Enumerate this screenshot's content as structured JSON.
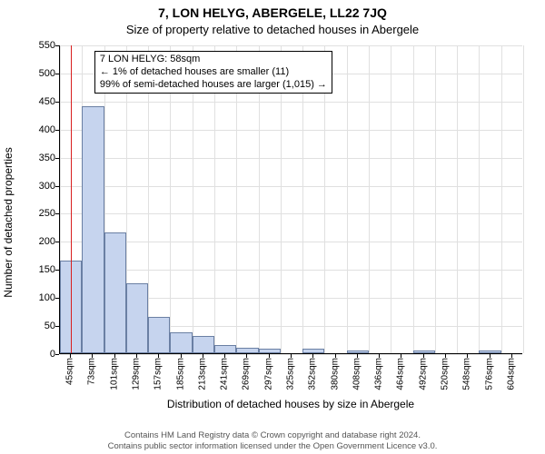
{
  "header": {
    "address": "7, LON HELYG, ABERGELE, LL22 7JQ",
    "subtitle": "Size of property relative to detached houses in Abergele"
  },
  "chart": {
    "type": "histogram",
    "ylabel": "Number of detached properties",
    "xlabel": "Distribution of detached houses by size in Abergele",
    "ylim": [
      0,
      550
    ],
    "ytick_step": 50,
    "yticks": [
      0,
      50,
      100,
      150,
      200,
      250,
      300,
      350,
      400,
      450,
      500,
      550
    ],
    "xticks": [
      "45sqm",
      "73sqm",
      "101sqm",
      "129sqm",
      "157sqm",
      "185sqm",
      "213sqm",
      "241sqm",
      "269sqm",
      "297sqm",
      "325sqm",
      "352sqm",
      "380sqm",
      "408sqm",
      "436sqm",
      "464sqm",
      "492sqm",
      "520sqm",
      "548sqm",
      "576sqm",
      "604sqm"
    ],
    "bar_color": "#c6d4ee",
    "bar_border_color": "#6a7fa3",
    "grid_color": "#e0e0e0",
    "background_color": "#ffffff",
    "marker_color": "#d91e1e",
    "marker_x_sqm": 58,
    "x_min_sqm": 45,
    "x_max_sqm": 604,
    "values": [
      165,
      440,
      215,
      125,
      65,
      38,
      30,
      15,
      10,
      8,
      0,
      8,
      0,
      5,
      0,
      0,
      5,
      0,
      0,
      5
    ],
    "title_fontsize": 14,
    "label_fontsize": 12,
    "tick_fontsize": 11,
    "xtick_fontsize": 10
  },
  "annotation": {
    "line1": "7 LON HELYG: 58sqm",
    "line2": "← 1% of detached houses are smaller (11)",
    "line3": "99% of semi-detached houses are larger (1,015) →"
  },
  "footer": {
    "line1": "Contains HM Land Registry data © Crown copyright and database right 2024.",
    "line2": "Contains public sector information licensed under the Open Government Licence v3.0."
  }
}
